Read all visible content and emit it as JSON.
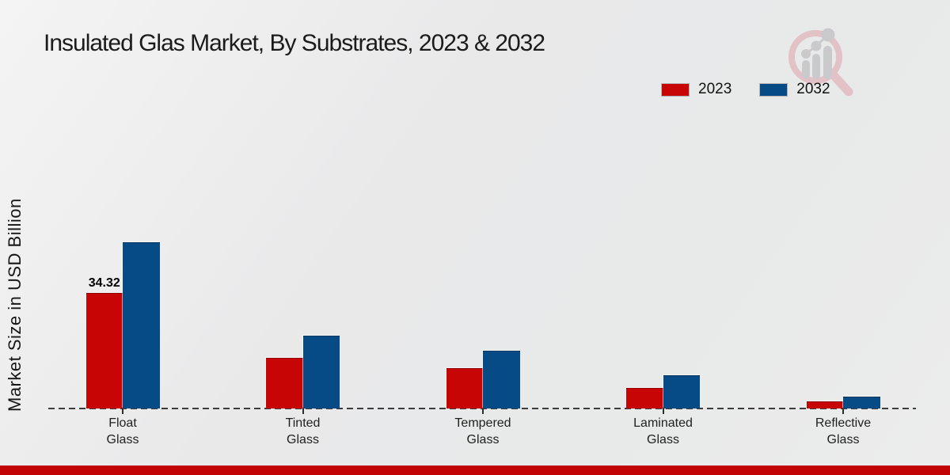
{
  "title": "Insulated Glas Market, By Substrates, 2023 & 2032",
  "branding": {
    "logo_name": "magnifier-growth-chart-watermark"
  },
  "footer": {
    "accent_color": "#c10505"
  },
  "chart_data": {
    "type": "bar",
    "title": "Insulated Glas Market, By Substrates, 2023 & 2032",
    "xlabel": "",
    "ylabel": "Market Size in USD Billion",
    "categories": [
      "Float Glass",
      "Tinted Glass",
      "Tempered Glass",
      "Laminated Glass",
      "Reflective Glass"
    ],
    "series": [
      {
        "name": "2023",
        "color": "#c80505",
        "border": "#8e0303",
        "values": [
          34.32,
          15.0,
          11.9,
          6.0,
          1.9
        ]
      },
      {
        "name": "2032",
        "color": "#064a86",
        "border": "#04355f",
        "values": [
          49.5,
          21.6,
          17.1,
          9.6,
          3.4
        ]
      }
    ],
    "data_labels": [
      {
        "series": "2023",
        "category": "Float Glass",
        "text": "34.32"
      }
    ],
    "ylim": [
      0,
      55
    ],
    "grid": false,
    "legend_position": "top-right",
    "baseline_style": "dashed"
  }
}
